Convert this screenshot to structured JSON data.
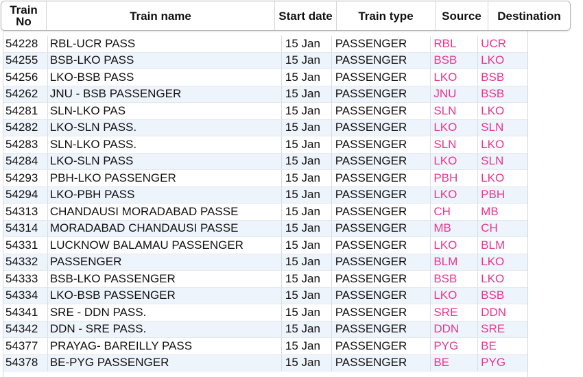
{
  "header": {
    "train_no": "Train No",
    "train_name": "Train name",
    "start_date": "Start date",
    "train_type": "Train type",
    "source": "Source",
    "destination": "Destination"
  },
  "rows": [
    {
      "no": "54228",
      "name": "RBL-UCR PASS",
      "date": "15 Jan",
      "type": "PASSENGER",
      "src": "RBL",
      "dst": "UCR"
    },
    {
      "no": "54255",
      "name": "BSB-LKO PASS",
      "date": "15 Jan",
      "type": "PASSENGER",
      "src": "BSB",
      "dst": "LKO"
    },
    {
      "no": "54256",
      "name": "LKO-BSB PASS",
      "date": "15 Jan",
      "type": "PASSENGER",
      "src": "LKO",
      "dst": "BSB"
    },
    {
      "no": "54262",
      "name": "JNU - BSB PASSENGER",
      "date": "15 Jan",
      "type": "PASSENGER",
      "src": "JNU",
      "dst": "BSB"
    },
    {
      "no": "54281",
      "name": "SLN-LKO PAS",
      "date": "15 Jan",
      "type": "PASSENGER",
      "src": "SLN",
      "dst": "LKO"
    },
    {
      "no": "54282",
      "name": "LKO-SLN PASS.",
      "date": "15 Jan",
      "type": "PASSENGER",
      "src": "LKO",
      "dst": "SLN"
    },
    {
      "no": "54283",
      "name": "SLN-LKO PASS.",
      "date": "15 Jan",
      "type": "PASSENGER",
      "src": "SLN",
      "dst": "LKO"
    },
    {
      "no": "54284",
      "name": "LKO-SLN PASS",
      "date": "15 Jan",
      "type": "PASSENGER",
      "src": "LKO",
      "dst": "SLN"
    },
    {
      "no": "54293",
      "name": "PBH-LKO PASSENGER",
      "date": "15 Jan",
      "type": "PASSENGER",
      "src": "PBH",
      "dst": "LKO"
    },
    {
      "no": "54294",
      "name": "LKO-PBH PASS",
      "date": "15 Jan",
      "type": "PASSENGER",
      "src": "LKO",
      "dst": "PBH"
    },
    {
      "no": "54313",
      "name": "CHANDAUSI MORADABAD PASSE",
      "date": "15 Jan",
      "type": "PASSENGER",
      "src": "CH",
      "dst": "MB"
    },
    {
      "no": "54314",
      "name": "MORADABAD CHANDAUSI PASSE",
      "date": "15 Jan",
      "type": "PASSENGER",
      "src": "MB",
      "dst": "CH"
    },
    {
      "no": "54331",
      "name": "LUCKNOW BALAMAU PASSENGER",
      "date": "15 Jan",
      "type": "PASSENGER",
      "src": "LKO",
      "dst": "BLM"
    },
    {
      "no": "54332",
      "name": "PASSENGER",
      "date": "15 Jan",
      "type": "PASSENGER",
      "src": "BLM",
      "dst": "LKO"
    },
    {
      "no": "54333",
      "name": "BSB-LKO PASSENGER",
      "date": "15 Jan",
      "type": "PASSENGER",
      "src": "BSB",
      "dst": "LKO"
    },
    {
      "no": "54334",
      "name": "LKO-BSB PASSENGER",
      "date": "15 Jan",
      "type": "PASSENGER",
      "src": "LKO",
      "dst": "BSB"
    },
    {
      "no": "54341",
      "name": "SRE - DDN PASS.",
      "date": "15 Jan",
      "type": "PASSENGER",
      "src": "SRE",
      "dst": "DDN"
    },
    {
      "no": "54342",
      "name": "DDN - SRE PASS.",
      "date": "15 Jan",
      "type": "PASSENGER",
      "src": "DDN",
      "dst": "SRE"
    },
    {
      "no": "54377",
      "name": "PRAYAG- BAREILLY PASS",
      "date": "15 Jan",
      "type": "PASSENGER",
      "src": "PYG",
      "dst": "BE"
    },
    {
      "no": "54378",
      "name": "BE-PYG PASSENGER",
      "date": "15 Jan",
      "type": "PASSENGER",
      "src": "BE",
      "dst": "PYG"
    }
  ],
  "colors": {
    "station_code": "#e8358f",
    "row_alt": "#eef4fb"
  }
}
